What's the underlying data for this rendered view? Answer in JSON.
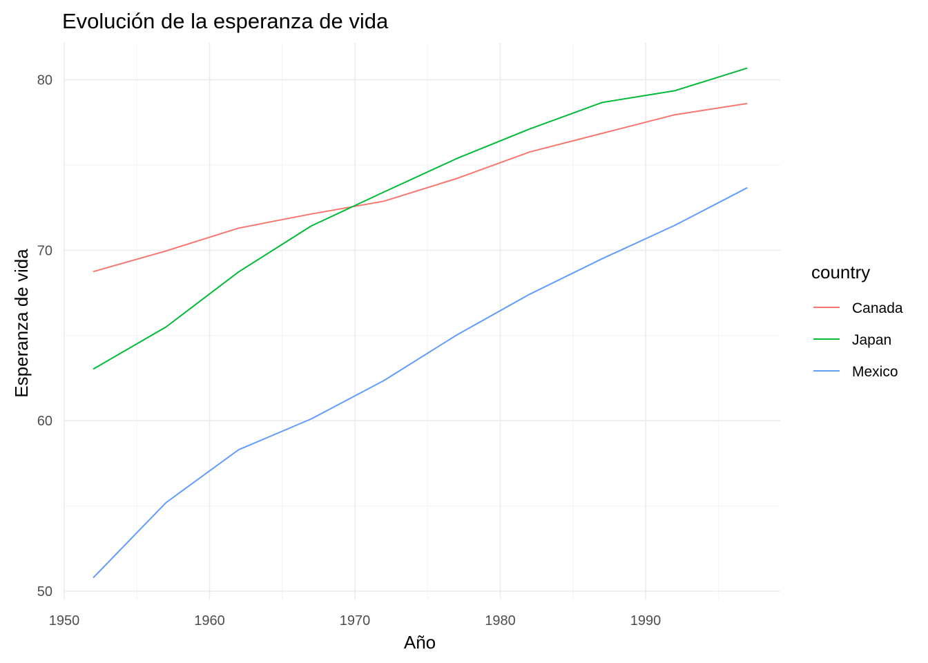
{
  "chart_data": {
    "type": "line",
    "title": "Evolución de la esperanza de vida",
    "xlabel": "Año",
    "ylabel": "Esperanza de vida",
    "xlim": [
      1950,
      1999
    ],
    "ylim": [
      50,
      82
    ],
    "x_ticks": [
      1950,
      1960,
      1970,
      1980,
      1990
    ],
    "y_ticks": [
      50,
      60,
      70,
      80
    ],
    "grid": true,
    "legend": {
      "title": "country",
      "position": "right"
    },
    "x": [
      1952,
      1957,
      1962,
      1967,
      1972,
      1977,
      1982,
      1987,
      1992,
      1997
    ],
    "series": [
      {
        "name": "Canada",
        "color": "#F8766D",
        "values": [
          68.75,
          69.96,
          71.3,
          72.13,
          72.88,
          74.21,
          75.76,
          76.86,
          77.95,
          78.61
        ]
      },
      {
        "name": "Japan",
        "color": "#00BA38",
        "values": [
          63.03,
          65.5,
          68.73,
          71.43,
          73.42,
          75.38,
          77.11,
          78.67,
          79.36,
          80.69
        ]
      },
      {
        "name": "Mexico",
        "color": "#619CFF",
        "values": [
          50.79,
          55.19,
          58.3,
          60.11,
          62.36,
          65.03,
          67.41,
          69.5,
          71.46,
          73.67
        ]
      }
    ]
  }
}
